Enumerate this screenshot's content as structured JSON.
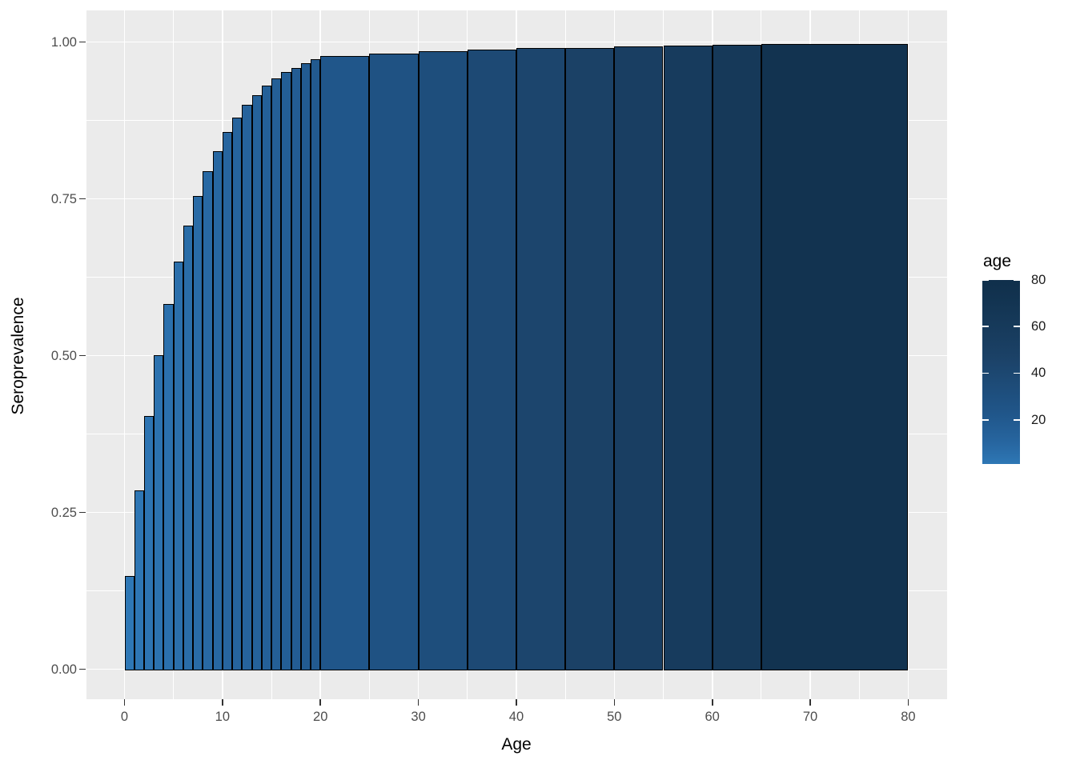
{
  "chart_data": {
    "type": "bar",
    "title": "",
    "xlabel": "Age",
    "ylabel": "Seroprevalence",
    "x_tick_labels": [
      "0",
      "10",
      "20",
      "30",
      "40",
      "50",
      "60",
      "70",
      "80"
    ],
    "x_tick_values": [
      0,
      10,
      20,
      30,
      40,
      50,
      60,
      70,
      80
    ],
    "x_minor_values": [
      5,
      15,
      25,
      35,
      45,
      55,
      65,
      75
    ],
    "y_tick_labels": [
      "0.00",
      "0.25",
      "0.50",
      "0.75",
      "1.00"
    ],
    "y_tick_values": [
      0,
      0.25,
      0.5,
      0.75,
      1.0
    ],
    "y_minor_values": [
      0.125,
      0.375,
      0.625,
      0.875
    ],
    "xlim": [
      -4,
      84
    ],
    "ylim": [
      -0.05,
      1.045
    ],
    "grid": "white major+minor on grey panel",
    "legend_position": "right",
    "bars": [
      {
        "age_from": 0,
        "age_to": 1,
        "seroprevalence": 0.149
      },
      {
        "age_from": 1,
        "age_to": 2,
        "seroprevalence": 0.285
      },
      {
        "age_from": 2,
        "age_to": 3,
        "seroprevalence": 0.404
      },
      {
        "age_from": 3,
        "age_to": 4,
        "seroprevalence": 0.501
      },
      {
        "age_from": 4,
        "age_to": 5,
        "seroprevalence": 0.582
      },
      {
        "age_from": 5,
        "age_to": 6,
        "seroprevalence": 0.65
      },
      {
        "age_from": 6,
        "age_to": 7,
        "seroprevalence": 0.707
      },
      {
        "age_from": 7,
        "age_to": 8,
        "seroprevalence": 0.755
      },
      {
        "age_from": 8,
        "age_to": 9,
        "seroprevalence": 0.794
      },
      {
        "age_from": 9,
        "age_to": 10,
        "seroprevalence": 0.826
      },
      {
        "age_from": 10,
        "age_to": 11,
        "seroprevalence": 0.856
      },
      {
        "age_from": 11,
        "age_to": 12,
        "seroprevalence": 0.879
      },
      {
        "age_from": 12,
        "age_to": 13,
        "seroprevalence": 0.9
      },
      {
        "age_from": 13,
        "age_to": 14,
        "seroprevalence": 0.915
      },
      {
        "age_from": 14,
        "age_to": 15,
        "seroprevalence": 0.93
      },
      {
        "age_from": 15,
        "age_to": 16,
        "seroprevalence": 0.942
      },
      {
        "age_from": 16,
        "age_to": 17,
        "seroprevalence": 0.952
      },
      {
        "age_from": 17,
        "age_to": 18,
        "seroprevalence": 0.959
      },
      {
        "age_from": 18,
        "age_to": 19,
        "seroprevalence": 0.966
      },
      {
        "age_from": 19,
        "age_to": 20,
        "seroprevalence": 0.972
      },
      {
        "age_from": 20,
        "age_to": 25,
        "seroprevalence": 0.978
      },
      {
        "age_from": 25,
        "age_to": 30,
        "seroprevalence": 0.982
      },
      {
        "age_from": 30,
        "age_to": 35,
        "seroprevalence": 0.985
      },
      {
        "age_from": 35,
        "age_to": 40,
        "seroprevalence": 0.988
      },
      {
        "age_from": 40,
        "age_to": 45,
        "seroprevalence": 0.99
      },
      {
        "age_from": 45,
        "age_to": 50,
        "seroprevalence": 0.991
      },
      {
        "age_from": 50,
        "age_to": 55,
        "seroprevalence": 0.9925
      },
      {
        "age_from": 55,
        "age_to": 60,
        "seroprevalence": 0.994
      },
      {
        "age_from": 60,
        "age_to": 65,
        "seroprevalence": 0.995
      },
      {
        "age_from": 65,
        "age_to": 80,
        "seroprevalence": 0.9965
      }
    ],
    "fill_legend": {
      "title": "age",
      "tick_labels": [
        "80",
        "60",
        "40",
        "20"
      ],
      "tick_values": [
        80,
        60,
        40,
        20
      ],
      "range": [
        1,
        80
      ]
    }
  },
  "colors": {
    "panel_background": "#EBEBEB",
    "gridline": "#FFFFFF",
    "bar_stroke": "#000000",
    "axis_text": "#4D4D4D",
    "title_text": "#000000",
    "gradient_stops": [
      {
        "age": 1,
        "hex": "#2E77B5"
      },
      {
        "age": 10,
        "hex": "#2766A0"
      },
      {
        "age": 22.5,
        "hex": "#20568A"
      },
      {
        "age": 47.5,
        "hex": "#1B4166"
      },
      {
        "age": 72.5,
        "hex": "#123350"
      },
      {
        "age": 80,
        "hex": "#102F4B"
      }
    ]
  }
}
